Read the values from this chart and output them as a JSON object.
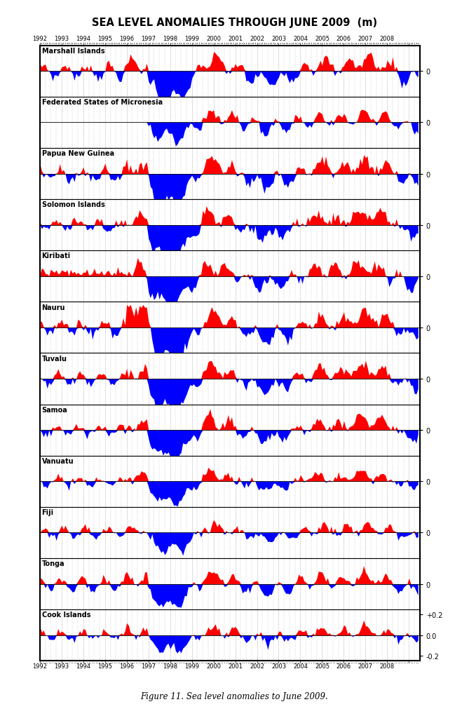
{
  "title": "SEA LEVEL ANOMALIES THROUGH JUNE 2009  (m)",
  "caption": "Figure 11. Sea level anomalies to June 2009.",
  "stations": [
    "Marshall Islands",
    "Federated States of Micronesia",
    "Papua New Guinea",
    "Solomon Islands",
    "Kiribati",
    "Nauru",
    "Tuvalu",
    "Samoa",
    "Vanuatu",
    "Fiji",
    "Tonga",
    "Cook Islands"
  ],
  "start_year": 1992,
  "n_months": 210,
  "color_positive": "#FF0000",
  "color_negative": "#0000FF",
  "ylim": [
    -0.25,
    0.25
  ],
  "years_label": [
    1992,
    1993,
    1994,
    1995,
    1996,
    1997,
    1998,
    1999,
    2000,
    2001,
    2002,
    2003,
    2004,
    2005,
    2006,
    2007,
    2008
  ],
  "last_yticks": [
    0.2,
    0.0,
    -0.2
  ],
  "last_ytick_labels": [
    "+0.2",
    "0.0",
    "-0.2"
  ]
}
